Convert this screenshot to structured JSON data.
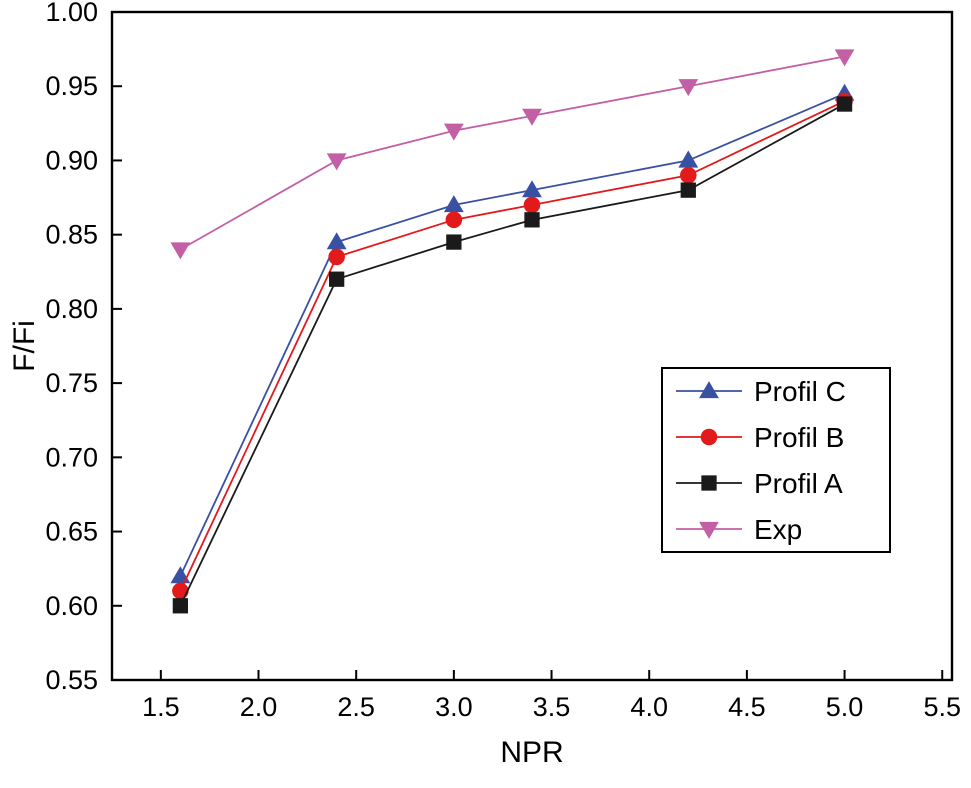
{
  "chart_data": {
    "type": "line",
    "title": "",
    "xlabel": "NPR",
    "ylabel": "F/Fi",
    "xlim": [
      1.25,
      5.55
    ],
    "ylim": [
      0.55,
      1.0
    ],
    "xticks": [
      1.5,
      2.0,
      2.5,
      3.0,
      3.5,
      4.0,
      4.5,
      5.0,
      5.5
    ],
    "xtick_labels": [
      "1.5",
      "2.0",
      "2.5",
      "3.0",
      "3.5",
      "4.0",
      "4.5",
      "5.0",
      "5.5"
    ],
    "yticks": [
      0.55,
      0.6,
      0.65,
      0.7,
      0.75,
      0.8,
      0.85,
      0.9,
      0.95,
      1.0
    ],
    "ytick_labels": [
      "0.55",
      "0.60",
      "0.65",
      "0.70",
      "0.75",
      "0.80",
      "0.85",
      "0.90",
      "0.95",
      "1.00"
    ],
    "x": [
      1.6,
      2.4,
      3.0,
      3.4,
      4.2,
      5.0
    ],
    "series": [
      {
        "name": "Profil C",
        "marker": "triangle-up",
        "color": "#3951a2",
        "values": [
          0.62,
          0.845,
          0.87,
          0.88,
          0.9,
          0.945
        ]
      },
      {
        "name": "Profil B",
        "marker": "circle",
        "color": "#e31a1c",
        "values": [
          0.61,
          0.835,
          0.86,
          0.87,
          0.89,
          0.94
        ]
      },
      {
        "name": "Profil A",
        "marker": "square",
        "color": "#1a1a1a",
        "values": [
          0.6,
          0.82,
          0.845,
          0.86,
          0.88,
          0.938
        ]
      },
      {
        "name": "Exp",
        "marker": "triangle-down",
        "color": "#c25fa5",
        "values": [
          0.84,
          0.9,
          0.92,
          0.93,
          0.95,
          0.97
        ]
      }
    ],
    "legend": {
      "position": "middle-right",
      "entries": [
        "Profil C",
        "Profil B",
        "Profil A",
        "Exp"
      ]
    },
    "grid": false,
    "axis_color": "#000000",
    "background": "#ffffff"
  }
}
